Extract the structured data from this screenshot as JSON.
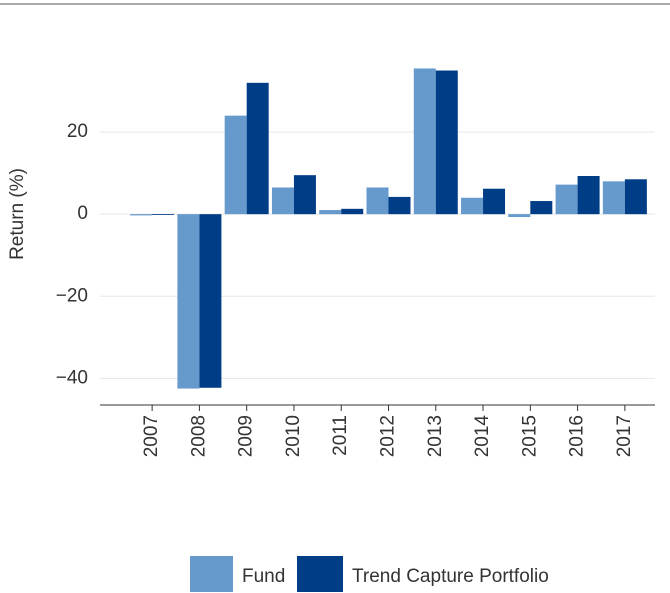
{
  "chart_data": {
    "type": "bar",
    "y_label": "Return (%)",
    "categories": [
      "2007",
      "2008",
      "2009",
      "2010",
      "2011",
      "2012",
      "2013",
      "2014",
      "2015",
      "2016",
      "2017"
    ],
    "series": [
      {
        "name": "Fund",
        "color": "#6699cc",
        "values": [
          -0.3,
          -42.5,
          24,
          6.5,
          1,
          6.5,
          35.5,
          4,
          -0.7,
          7.2,
          8
        ]
      },
      {
        "name": "Trend Capture Portfolio",
        "color": "#003d87",
        "values": [
          -0.2,
          -42.3,
          32,
          9.5,
          1.3,
          4.2,
          35,
          6.2,
          3.2,
          9.3,
          8.5
        ]
      }
    ],
    "ylim": [
      -46.5,
      40
    ],
    "yticks": [
      {
        "value": -40,
        "label": "−40"
      },
      {
        "value": -20,
        "label": "−20"
      },
      0,
      20
    ],
    "grid": true
  }
}
